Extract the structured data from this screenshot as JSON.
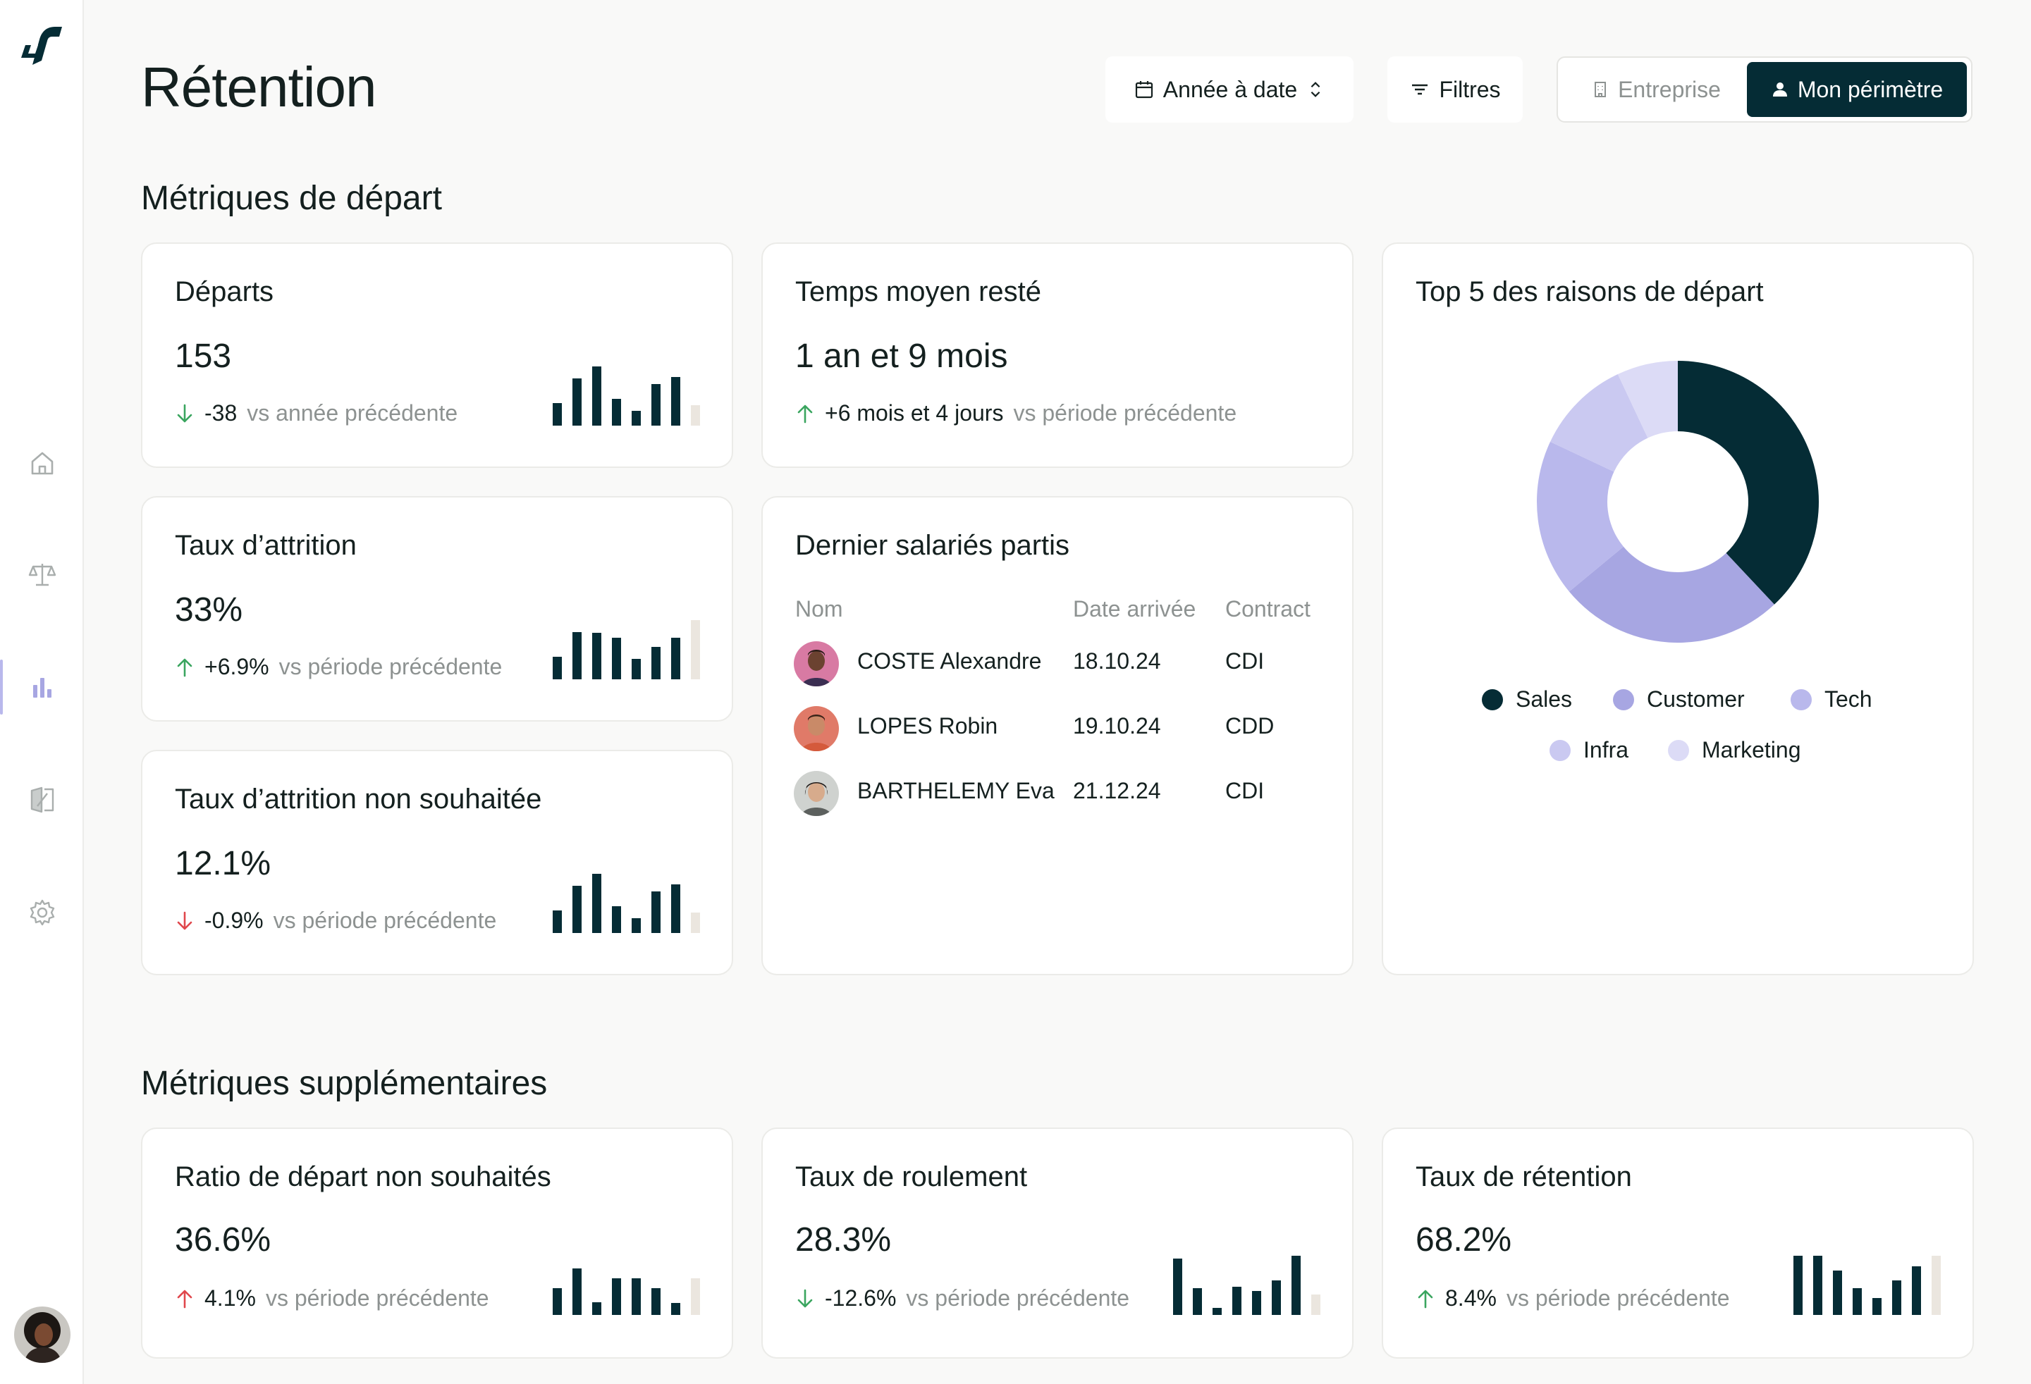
{
  "header": {
    "title": "Rétention",
    "date_filter": "Année à date",
    "filters_label": "Filtres",
    "scope_enterprise": "Entreprise",
    "scope_mine": "Mon périmètre"
  },
  "sections": {
    "departure": "Métriques de départ",
    "additional": "Métriques supplémentaires"
  },
  "colors": {
    "dark": "#052c35",
    "muted_bar": "#ebe6df",
    "up": "#3aa55f",
    "down_red": "#e0474c"
  },
  "cards": {
    "departs": {
      "title": "Départs",
      "value": "153",
      "delta": "-38",
      "delta_label": "vs année précédente",
      "direction": "down",
      "trend": "good",
      "spark": [
        0.38,
        0.8,
        1.0,
        0.45,
        0.25,
        0.7,
        0.82,
        0.35
      ]
    },
    "tenure": {
      "title": "Temps moyen resté",
      "value": "1 an et 9 mois",
      "delta": "+6 mois et 4 jours",
      "delta_label": "vs période précédente",
      "direction": "up",
      "trend": "good"
    },
    "attrition": {
      "title": "Taux d’attrition",
      "value": "33%",
      "delta": "+6.9%",
      "delta_label": "vs période précédente",
      "direction": "up",
      "trend": "good",
      "spark": [
        0.38,
        0.8,
        0.78,
        0.7,
        0.35,
        0.55,
        0.7,
        1.0
      ]
    },
    "unwanted": {
      "title": "Taux d’attrition non souhaitée",
      "value": "12.1%",
      "delta": "-0.9%",
      "delta_label": "vs période précédente",
      "direction": "down",
      "trend": "bad",
      "spark": [
        0.38,
        0.8,
        1.0,
        0.45,
        0.25,
        0.7,
        0.82,
        0.35
      ]
    },
    "ratio": {
      "title": "Ratio de départ non souhaités",
      "value": "36.6%",
      "delta": "4.1%",
      "delta_label": "vs période précédente",
      "direction": "up",
      "trend": "bad",
      "spark": [
        0.45,
        0.78,
        0.22,
        0.62,
        0.62,
        0.45,
        0.2,
        0.62
      ]
    },
    "turnover": {
      "title": "Taux de roulement",
      "value": "28.3%",
      "delta": "-12.6%",
      "delta_label": "vs période précédente",
      "direction": "down",
      "trend": "good",
      "spark": [
        0.95,
        0.45,
        0.12,
        0.48,
        0.4,
        0.58,
        1.0,
        0.35
      ]
    },
    "retention": {
      "title": "Taux de rétention",
      "value": "68.2%",
      "delta": "8.4%",
      "delta_label": "vs période précédente",
      "direction": "up",
      "trend": "good",
      "spark": [
        1.0,
        1.0,
        0.75,
        0.45,
        0.28,
        0.58,
        0.82,
        1.0
      ]
    }
  },
  "recent_departures": {
    "title": "Dernier salariés partis",
    "columns": [
      "Nom",
      "Date arrivée",
      "Contract"
    ],
    "rows": [
      {
        "name": "COSTE Alexandre",
        "date": "18.10.24",
        "contract": "CDI"
      },
      {
        "name": "LOPES Robin",
        "date": "19.10.24",
        "contract": "CDD"
      },
      {
        "name": "BARTHELEMY Eva",
        "date": "21.12.24",
        "contract": "CDI"
      }
    ]
  },
  "chart_data": {
    "type": "pie",
    "title": "Top 5 des raisons de départ",
    "categories": [
      "Sales",
      "Customer",
      "Tech",
      "Infra",
      "Marketing"
    ],
    "values": [
      38,
      26,
      18,
      11,
      7
    ],
    "colors": [
      "#052c35",
      "#a7a6e2",
      "#b9b8ec",
      "#cac9f1",
      "#dcdbf6"
    ],
    "legend": "bottom"
  }
}
